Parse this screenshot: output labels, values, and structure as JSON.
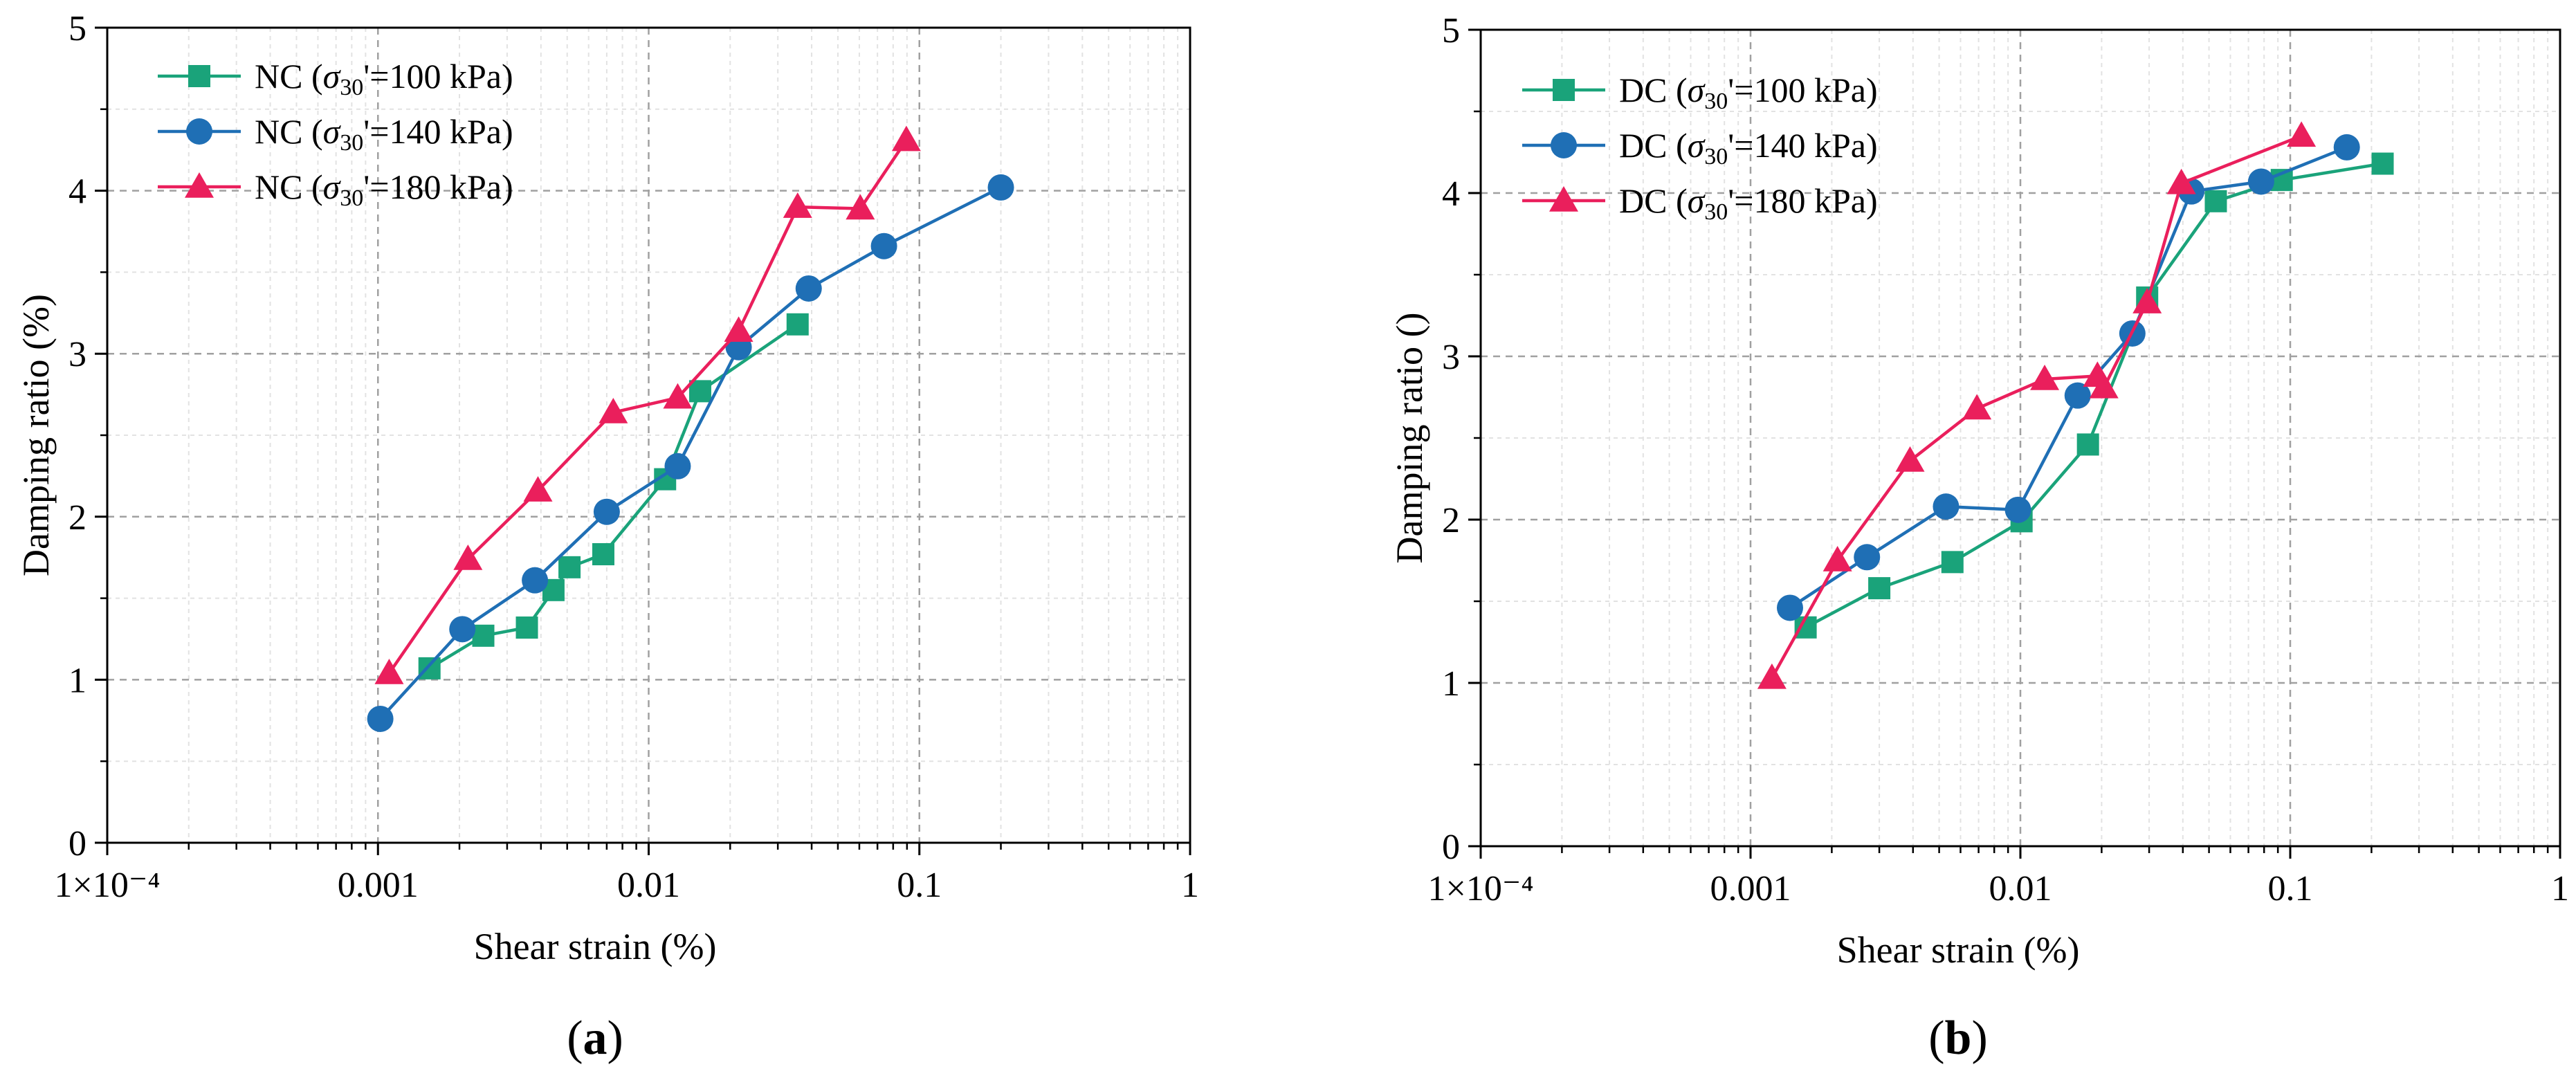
{
  "chart_data": [
    {
      "type": "line",
      "panel_label_open": "(",
      "panel_label": "a",
      "panel_label_close": ")",
      "title": "",
      "xlabel": "Shear strain (%)",
      "ylabel": "Damping ratio (%)",
      "xscale": "log",
      "xlim": [
        0.0001,
        1
      ],
      "ylim": [
        0,
        5
      ],
      "xticks": [
        0.0001,
        0.001,
        0.01,
        0.1,
        1
      ],
      "xtick_labels": [
        "1×10⁻⁴",
        "0.001",
        "0.01",
        "0.1",
        "1"
      ],
      "yticks": [
        0,
        1,
        2,
        3,
        4,
        5
      ],
      "ytick_labels": [
        "0",
        "1",
        "2",
        "3",
        "4",
        "5"
      ],
      "grid": true,
      "legend_position": "top-left",
      "series": [
        {
          "name_prefix": "NC (",
          "name_sigma": "σ",
          "name_sub": "30",
          "name_suffix": "'=100 kPa)",
          "color": "#1aa37a",
          "marker": "square",
          "x": [
            0.00155,
            0.00245,
            0.00355,
            0.00445,
            0.0051,
            0.0068,
            0.0115,
            0.0155,
            0.0355
          ],
          "y": [
            1.07,
            1.27,
            1.32,
            1.55,
            1.69,
            1.77,
            2.23,
            2.77,
            3.18
          ]
        },
        {
          "name_prefix": "NC (",
          "name_sigma": "σ",
          "name_sub": "30",
          "name_suffix": "'=140 kPa)",
          "color": "#1f6fb5",
          "marker": "circle",
          "x": [
            0.00102,
            0.00205,
            0.0038,
            0.007,
            0.0128,
            0.0215,
            0.039,
            0.074,
            0.2
          ],
          "y": [
            0.76,
            1.31,
            1.61,
            2.03,
            2.31,
            3.04,
            3.4,
            3.66,
            4.02
          ]
        },
        {
          "name_prefix": "NC (",
          "name_sigma": "σ",
          "name_sub": "30",
          "name_suffix": "'=180 kPa)",
          "color": "#ea1f5c",
          "marker": "triangle",
          "x": [
            0.0011,
            0.00215,
            0.0039,
            0.0074,
            0.0128,
            0.0215,
            0.0355,
            0.0605,
            0.0895
          ],
          "y": [
            1.04,
            1.74,
            2.16,
            2.64,
            2.73,
            3.14,
            3.9,
            3.89,
            4.31
          ]
        }
      ]
    },
    {
      "type": "line",
      "panel_label_open": "(",
      "panel_label": "b",
      "panel_label_close": ")",
      "title": "",
      "xlabel": "Shear strain (%)",
      "ylabel": "Damping ratio ()",
      "xscale": "log",
      "xlim": [
        0.0001,
        1
      ],
      "ylim": [
        0,
        5
      ],
      "xticks": [
        0.0001,
        0.001,
        0.01,
        0.1,
        1
      ],
      "xtick_labels": [
        "1×10⁻⁴",
        "0.001",
        "0.01",
        "0.1",
        "1"
      ],
      "yticks": [
        0,
        1,
        2,
        3,
        4,
        5
      ],
      "ytick_labels": [
        "0",
        "1",
        "2",
        "3",
        "4",
        "5"
      ],
      "grid": true,
      "legend_position": "top-left",
      "series": [
        {
          "name_prefix": "DC (",
          "name_sigma": "σ",
          "name_sub": "30",
          "name_suffix": "'=100 kPa)",
          "color": "#1aa37a",
          "marker": "square",
          "x": [
            0.0016,
            0.003,
            0.0056,
            0.0101,
            0.0178,
            0.0295,
            0.053,
            0.093,
            0.22
          ],
          "y": [
            1.34,
            1.58,
            1.74,
            1.99,
            2.46,
            3.36,
            3.95,
            4.08,
            4.18
          ]
        },
        {
          "name_prefix": "DC (",
          "name_sigma": "σ",
          "name_sub": "30",
          "name_suffix": "'=140 kPa)",
          "color": "#1f6fb5",
          "marker": "circle",
          "x": [
            0.0014,
            0.0027,
            0.0053,
            0.0098,
            0.0163,
            0.026,
            0.043,
            0.078,
            0.162
          ],
          "y": [
            1.46,
            1.77,
            2.08,
            2.06,
            2.76,
            3.14,
            4.01,
            4.07,
            4.28
          ]
        },
        {
          "name_prefix": "DC (",
          "name_sigma": "σ",
          "name_sub": "30",
          "name_suffix": "'=180 kPa)",
          "color": "#ea1f5c",
          "marker": "triangle",
          "x": [
            0.0012,
            0.0021,
            0.0039,
            0.0069,
            0.0123,
            0.0193,
            0.0204,
            0.0295,
            0.0395,
            0.11
          ],
          "y": [
            1.03,
            1.75,
            2.36,
            2.68,
            2.86,
            2.88,
            2.81,
            3.33,
            4.06,
            4.35
          ]
        }
      ]
    }
  ]
}
